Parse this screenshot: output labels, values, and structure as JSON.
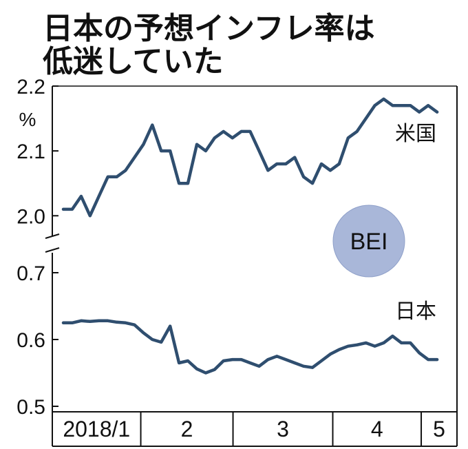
{
  "title_lines": [
    "日本の予想インフレ率は",
    "低迷していた"
  ],
  "chart_data": {
    "type": "line",
    "badge": "BEI",
    "unit": "%",
    "colors": {
      "line": "#2f4e6f",
      "badge_fill": "#a9b7d9",
      "badge_stroke": "#8fa0c9",
      "axis": "#111111"
    },
    "upper_panel": {
      "y_ticks": [
        "2.2",
        "2.1",
        "2.0"
      ],
      "ylim": [
        1.995,
        2.2
      ],
      "series": {
        "name": "米国",
        "x": [
          0.0,
          0.5,
          1.0,
          1.5,
          2.0,
          2.5,
          3.0,
          3.5,
          4.0,
          4.5,
          5.0,
          5.5,
          6.0,
          6.5,
          7.0,
          7.5,
          8.0,
          8.5,
          9.0,
          9.5,
          10.0,
          10.5,
          11.0,
          11.5,
          12.0,
          12.5,
          13.0,
          13.5,
          14.0,
          14.5,
          15.0,
          15.5,
          16.0,
          16.5,
          17.0,
          17.5,
          18.0,
          18.5,
          19.0,
          19.5,
          20.0,
          20.5,
          21.0
        ],
        "values": [
          2.01,
          2.01,
          2.03,
          2.0,
          2.03,
          2.06,
          2.06,
          2.07,
          2.09,
          2.11,
          2.14,
          2.1,
          2.1,
          2.05,
          2.05,
          2.11,
          2.1,
          2.12,
          2.13,
          2.12,
          2.13,
          2.13,
          2.1,
          2.07,
          2.08,
          2.08,
          2.09,
          2.06,
          2.05,
          2.08,
          2.07,
          2.08,
          2.12,
          2.13,
          2.15,
          2.17,
          2.18,
          2.17,
          2.17,
          2.17,
          2.16,
          2.17,
          2.16
        ]
      }
    },
    "lower_panel": {
      "y_ticks": [
        "0.7",
        "0.6",
        "0.5"
      ],
      "ylim": [
        0.5,
        0.7
      ],
      "series": {
        "name": "日本",
        "x": [
          0.0,
          0.5,
          1.0,
          1.5,
          2.0,
          2.5,
          3.0,
          3.5,
          4.0,
          4.5,
          5.0,
          5.5,
          6.0,
          6.5,
          7.0,
          7.5,
          8.0,
          8.5,
          9.0,
          9.5,
          10.0,
          10.5,
          11.0,
          11.5,
          12.0,
          12.5,
          13.0,
          13.5,
          14.0,
          14.5,
          15.0,
          15.5,
          16.0,
          16.5,
          17.0,
          17.5,
          18.0,
          18.5,
          19.0,
          19.5,
          20.0,
          20.5,
          21.0
        ],
        "values": [
          0.625,
          0.625,
          0.628,
          0.627,
          0.628,
          0.628,
          0.626,
          0.625,
          0.622,
          0.61,
          0.6,
          0.596,
          0.62,
          0.565,
          0.568,
          0.556,
          0.55,
          0.555,
          0.568,
          0.57,
          0.57,
          0.565,
          0.56,
          0.57,
          0.575,
          0.57,
          0.565,
          0.56,
          0.558,
          0.568,
          0.578,
          0.585,
          0.59,
          0.592,
          0.595,
          0.59,
          0.595,
          0.605,
          0.595,
          0.595,
          0.58,
          0.57,
          0.57
        ]
      }
    },
    "x_months": [
      "2018/1",
      "2",
      "3",
      "4",
      "5"
    ],
    "x_month_bounds": [
      0,
      4.7,
      9.6,
      14.9,
      19.6,
      21.5
    ]
  }
}
